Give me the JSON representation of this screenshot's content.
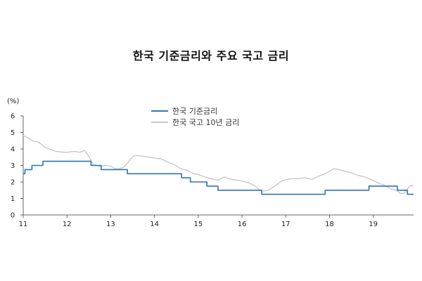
{
  "chart_data": {
    "type": "line",
    "title": "한국 기준금리와 주요 국고 금리",
    "ylabel": "(%)",
    "ylim": [
      0,
      6
    ],
    "y_ticks": [
      "0",
      "1",
      "2",
      "3",
      "4",
      "5",
      "6"
    ],
    "xlim": [
      2011.0,
      2019.92
    ],
    "x_ticks": [
      {
        "x": 2011,
        "label": "11"
      },
      {
        "x": 2012,
        "label": "12"
      },
      {
        "x": 2013,
        "label": "13"
      },
      {
        "x": 2014,
        "label": "14"
      },
      {
        "x": 2015,
        "label": "15"
      },
      {
        "x": 2016,
        "label": "16"
      },
      {
        "x": 2017,
        "label": "17"
      },
      {
        "x": 2018,
        "label": "18"
      },
      {
        "x": 2019,
        "label": "19"
      }
    ],
    "grid": false,
    "legend_position": "top-center",
    "series": [
      {
        "name": "한국 기준금리",
        "color": "#2e75b6",
        "style": "step",
        "x": [
          2011.0,
          2011.04,
          2011.2,
          2011.45,
          2012.55,
          2012.78,
          2013.38,
          2014.62,
          2014.82,
          2015.2,
          2015.45,
          2016.45,
          2017.9,
          2018.9,
          2019.55,
          2019.78,
          2019.92
        ],
        "y": [
          2.5,
          2.75,
          3.0,
          3.25,
          3.0,
          2.75,
          2.5,
          2.25,
          2.0,
          1.75,
          1.5,
          1.25,
          1.5,
          1.75,
          1.5,
          1.25,
          1.25
        ]
      },
      {
        "name": "한국 국고 10년 금리",
        "color": "#c8c8c8",
        "style": "line",
        "x": [
          2011.0,
          2011.1,
          2011.2,
          2011.35,
          2011.5,
          2011.6,
          2011.75,
          2011.9,
          2012.0,
          2012.15,
          2012.3,
          2012.4,
          2012.5,
          2012.6,
          2012.75,
          2012.9,
          2013.0,
          2013.1,
          2013.2,
          2013.3,
          2013.4,
          2013.5,
          2013.6,
          2013.75,
          2013.9,
          2014.0,
          2014.15,
          2014.3,
          2014.45,
          2014.6,
          2014.75,
          2014.9,
          2015.0,
          2015.15,
          2015.3,
          2015.45,
          2015.6,
          2015.75,
          2015.9,
          2016.0,
          2016.15,
          2016.3,
          2016.4,
          2016.5,
          2016.6,
          2016.75,
          2016.9,
          2017.0,
          2017.15,
          2017.3,
          2017.45,
          2017.6,
          2017.75,
          2017.9,
          2018.0,
          2018.1,
          2018.2,
          2018.35,
          2018.5,
          2018.65,
          2018.8,
          2018.95,
          2019.1,
          2019.25,
          2019.4,
          2019.55,
          2019.62,
          2019.7,
          2019.77,
          2019.85,
          2019.92
        ],
        "y": [
          4.8,
          4.7,
          4.5,
          4.4,
          4.1,
          4.0,
          3.85,
          3.8,
          3.8,
          3.85,
          3.8,
          3.9,
          3.55,
          3.05,
          2.95,
          3.0,
          2.95,
          2.8,
          2.8,
          2.9,
          3.2,
          3.55,
          3.6,
          3.55,
          3.5,
          3.45,
          3.4,
          3.2,
          3.05,
          2.8,
          2.7,
          2.5,
          2.45,
          2.3,
          2.2,
          2.1,
          2.3,
          2.15,
          2.1,
          2.05,
          1.95,
          1.75,
          1.5,
          1.45,
          1.5,
          1.75,
          2.05,
          2.15,
          2.2,
          2.2,
          2.25,
          2.15,
          2.35,
          2.5,
          2.65,
          2.8,
          2.75,
          2.65,
          2.55,
          2.4,
          2.3,
          2.15,
          1.95,
          1.8,
          1.6,
          1.45,
          1.3,
          1.3,
          1.55,
          1.8,
          1.75
        ]
      }
    ]
  }
}
